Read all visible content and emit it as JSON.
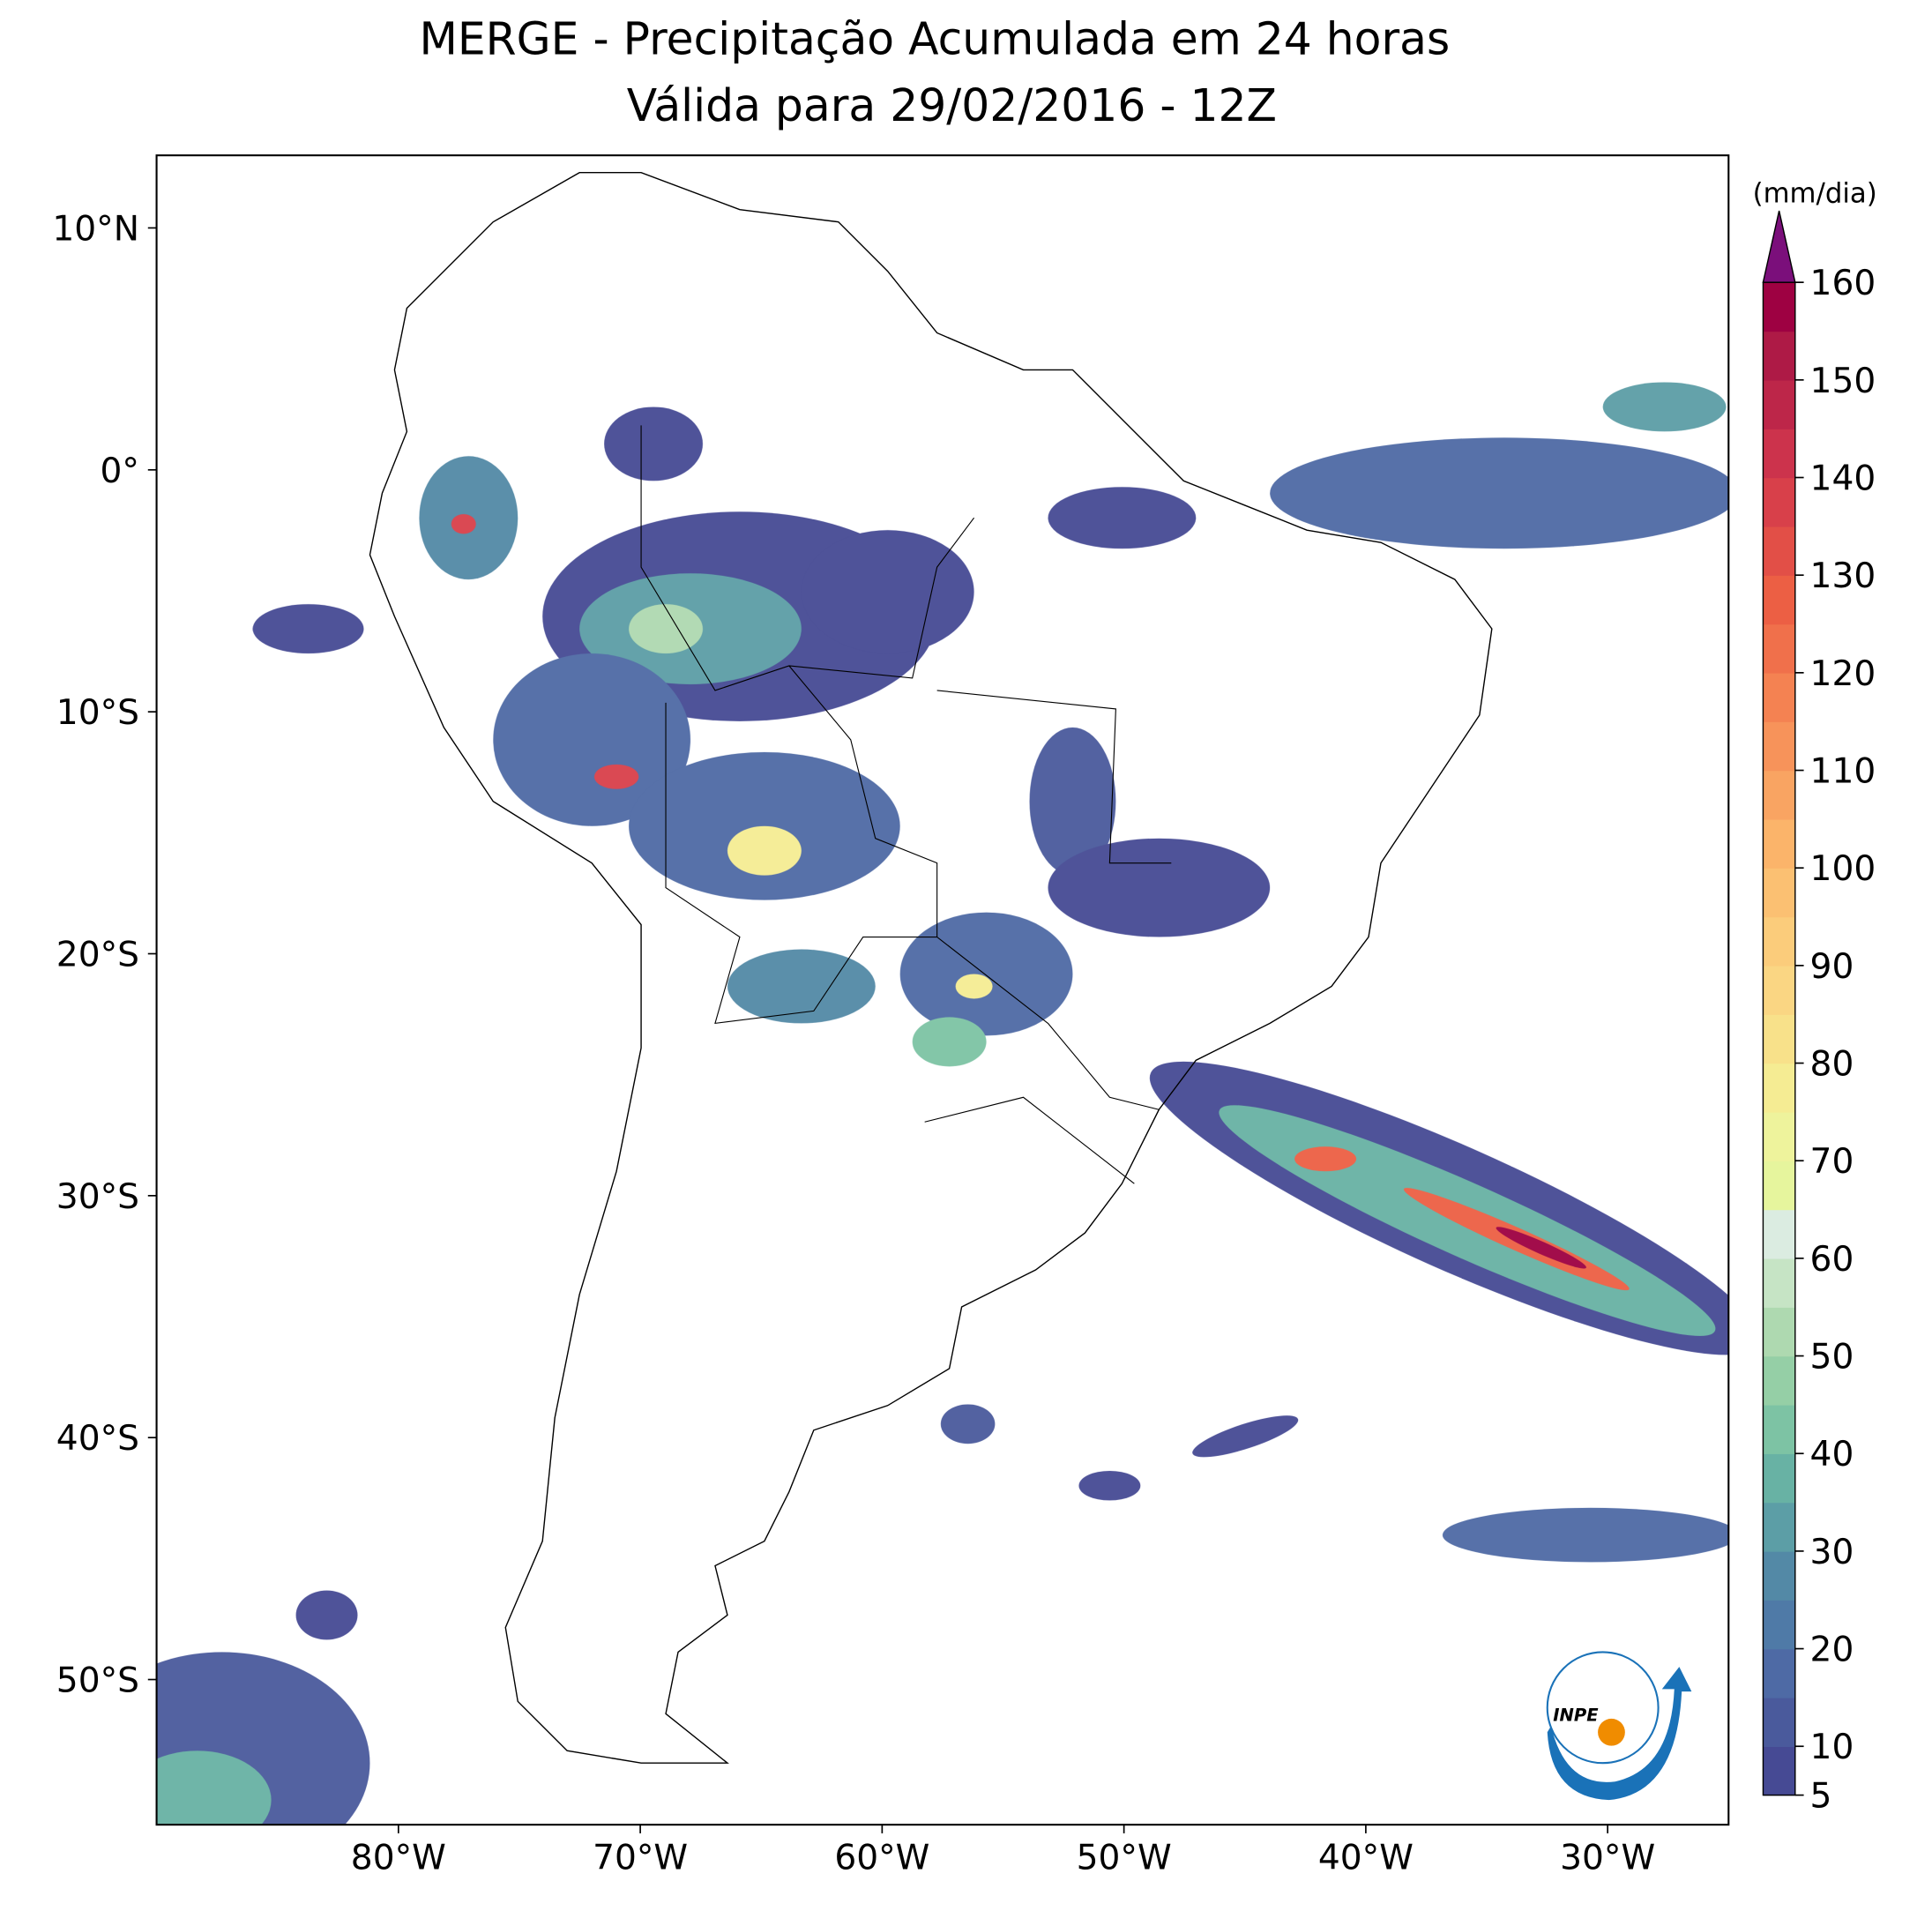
{
  "title": "MERGE - Precipitação Acumulada em 24 horas",
  "subtitle": "Válida para 29/02/2016 - 12Z",
  "map": {
    "xlim": [
      -90,
      -25
    ],
    "ylim": [
      -56,
      13
    ],
    "xticks": [
      {
        "value": -80,
        "label": "80°W"
      },
      {
        "value": -70,
        "label": "70°W"
      },
      {
        "value": -60,
        "label": "60°W"
      },
      {
        "value": -50,
        "label": "50°W"
      },
      {
        "value": -40,
        "label": "40°W"
      },
      {
        "value": -30,
        "label": "30°W"
      }
    ],
    "yticks": [
      {
        "value": 10,
        "label": "10°N"
      },
      {
        "value": 0,
        "label": "0°"
      },
      {
        "value": -10,
        "label": "10°S"
      },
      {
        "value": -20,
        "label": "20°S"
      },
      {
        "value": -30,
        "label": "30°S"
      },
      {
        "value": -40,
        "label": "40°S"
      },
      {
        "value": -50,
        "label": "50°S"
      }
    ]
  },
  "colorbar": {
    "label": "(mm/dia)",
    "levels": [
      5,
      10,
      15,
      20,
      25,
      30,
      35,
      40,
      45,
      50,
      55,
      60,
      65,
      70,
      75,
      80,
      85,
      90,
      95,
      100,
      105,
      110,
      115,
      120,
      125,
      130,
      135,
      140,
      145,
      150,
      155,
      160
    ],
    "colors": [
      "#464a94",
      "#4a5a9c",
      "#4e6aa5",
      "#4f7aa7",
      "#5389a6",
      "#5c9ea6",
      "#68b2a4",
      "#7dc3a4",
      "#95cfa6",
      "#aed9b0",
      "#c6e4c5",
      "#dbece1",
      "#e6f59d",
      "#eef39c",
      "#f5ec93",
      "#f8e18a",
      "#fad683",
      "#fbcc7b",
      "#fbc072",
      "#fbb46a",
      "#f9a462",
      "#f7935a",
      "#f48252",
      "#f0704b",
      "#ec5f44",
      "#e24f47",
      "#d8404a",
      "#cc334c",
      "#bd2649",
      "#ae1a46",
      "#9e0142"
    ],
    "extend_color": "#7b0f7b",
    "ticks": [
      5,
      10,
      20,
      30,
      40,
      50,
      60,
      70,
      80,
      90,
      100,
      110,
      120,
      130,
      140,
      150,
      160
    ]
  },
  "logo": "INPE"
}
